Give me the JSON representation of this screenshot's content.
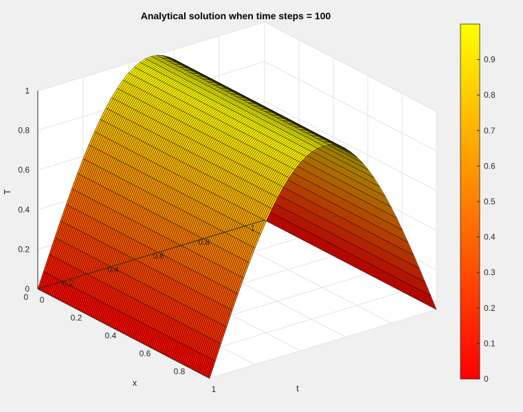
{
  "chart_data": {
    "type": "surface",
    "title": "Analytical solution when time steps = 100",
    "xlabel": "t",
    "ylabel": "x",
    "zlabel": "T",
    "x_axis": {
      "variable": "t",
      "range": [
        0,
        1
      ],
      "ticks": [
        "0",
        "0.2",
        "0.4",
        "0.6",
        "0.8",
        "1"
      ]
    },
    "y_axis": {
      "variable": "x",
      "range": [
        0,
        1
      ],
      "ticks": [
        "0",
        "0.2",
        "0.4",
        "0.6",
        "0.8",
        "1"
      ]
    },
    "z_axis": {
      "variable": "T",
      "range": [
        0,
        1
      ],
      "ticks": [
        "0",
        "0.2",
        "0.4",
        "0.6",
        "0.8",
        "1"
      ]
    },
    "surface": {
      "description_formula": "T(x,t) = sin(pi*x)",
      "t_samples": 101,
      "x_samples": 41,
      "x_profile": {
        "x": [
          0,
          0.1,
          0.2,
          0.3,
          0.4,
          0.5,
          0.6,
          0.7,
          0.8,
          0.9,
          1
        ],
        "T": [
          0,
          0.309,
          0.588,
          0.809,
          0.951,
          1,
          0.951,
          0.809,
          0.588,
          0.309,
          0
        ]
      }
    },
    "colormap": "autumn",
    "colorbar": {
      "range": [
        0,
        1
      ],
      "ticks": [
        "0",
        "0.1",
        "0.2",
        "0.3",
        "0.4",
        "0.5",
        "0.6",
        "0.7",
        "0.8",
        "0.9"
      ],
      "colors": [
        "#ff0000",
        "#ffff00"
      ]
    },
    "grid": true
  }
}
